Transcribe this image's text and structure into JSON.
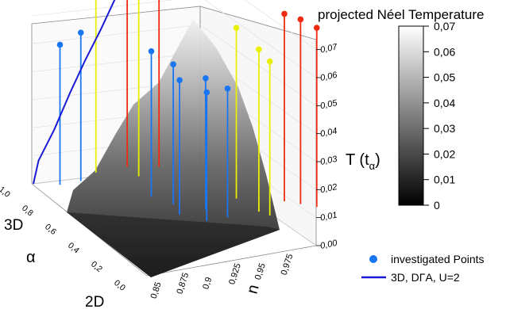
{
  "chart_data": {
    "type": "scatter",
    "subtype": "3d-stem-surface",
    "title": "projected Néel Temperature",
    "colorbar": {
      "ticks": [
        "0",
        "0,01",
        "0,02",
        "0,03",
        "0,04",
        "0,05",
        "0,06",
        "0,07"
      ],
      "range": [
        0,
        0.07
      ],
      "gradient": [
        "#000000",
        "#ffffff"
      ]
    },
    "axes": {
      "z": {
        "label_main": "T (t",
        "label_sub": "α",
        "label_close": ")",
        "ticks": [
          "0,00",
          "0,01",
          "0,02",
          "0,03",
          "0,04",
          "0,05",
          "0,06",
          "0,07"
        ],
        "range": [
          0,
          0.075
        ]
      },
      "n": {
        "label": "n",
        "ticks": [
          "0,85",
          "0,875",
          "0,9",
          "0,925",
          "0,95",
          "0,975"
        ],
        "range": [
          0.84,
          1.0
        ]
      },
      "alpha": {
        "label": "α",
        "ticks": [
          "0,0",
          "0,2",
          "0,4",
          "0,6",
          "0,8",
          "1,0"
        ],
        "range": [
          0,
          1
        ],
        "end_labels": {
          "top": "3D",
          "bottom": "2D"
        }
      }
    },
    "legend": {
      "placement": "bottom-right",
      "items": [
        {
          "label": "investigated Points",
          "marker": "circle",
          "color": "#1976f2"
        },
        {
          "label": "3D, DΓA, U=2",
          "marker": "line",
          "color": "#1a1ad6"
        }
      ]
    },
    "colors": {
      "blue": "#1976f2",
      "yellow": "#e8f000",
      "red": "#ee2a10",
      "line": "#1a1ad6"
    },
    "series": [
      {
        "color_key": "blue",
        "points": [
          {
            "n": 0.86,
            "alpha": 0.95,
            "T": 0.05
          },
          {
            "n": 0.88,
            "alpha": 0.95,
            "T": 0.053
          },
          {
            "n": 0.92,
            "alpha": 0.7,
            "T": 0.052
          },
          {
            "n": 0.93,
            "alpha": 0.6,
            "T": 0.05
          },
          {
            "n": 0.925,
            "alpha": 0.5,
            "T": 0.048
          },
          {
            "n": 0.94,
            "alpha": 0.4,
            "T": 0.046
          },
          {
            "n": 0.95,
            "alpha": 0.5,
            "T": 0.047
          },
          {
            "n": 0.96,
            "alpha": 0.4,
            "T": 0.046
          }
        ]
      },
      {
        "color_key": "yellow",
        "points": [
          {
            "n": 0.9,
            "alpha": 1.0,
            "T": 0.066
          },
          {
            "n": 0.93,
            "alpha": 0.9,
            "T": 0.064
          },
          {
            "n": 0.985,
            "alpha": 0.55,
            "T": 0.061
          },
          {
            "n": 0.99,
            "alpha": 0.4,
            "T": 0.058
          },
          {
            "n": 0.995,
            "alpha": 0.35,
            "T": 0.055
          }
        ]
      },
      {
        "color_key": "red",
        "points": [
          {
            "n": 0.93,
            "alpha": 1.0,
            "T": 0.074
          },
          {
            "n": 0.955,
            "alpha": 0.95,
            "T": 0.074
          },
          {
            "n": 1.02,
            "alpha": 0.45,
            "T": 0.067
          },
          {
            "n": 1.03,
            "alpha": 0.4,
            "T": 0.066
          },
          {
            "n": 1.04,
            "alpha": 0.35,
            "T": 0.064
          }
        ]
      }
    ],
    "line_3d": [
      {
        "n": 0.84,
        "alpha": 1.0,
        "T": 0.0
      },
      {
        "n": 0.845,
        "alpha": 1.0,
        "T": 0.008
      },
      {
        "n": 0.86,
        "alpha": 1.0,
        "T": 0.018
      },
      {
        "n": 0.875,
        "alpha": 1.0,
        "T": 0.03
      },
      {
        "n": 0.89,
        "alpha": 1.0,
        "T": 0.041
      },
      {
        "n": 0.905,
        "alpha": 1.0,
        "T": 0.051
      },
      {
        "n": 0.92,
        "alpha": 1.0,
        "T": 0.062
      },
      {
        "n": 0.935,
        "alpha": 1.0,
        "T": 0.07
      },
      {
        "n": 0.95,
        "alpha": 1.0,
        "T": 0.076
      }
    ]
  }
}
